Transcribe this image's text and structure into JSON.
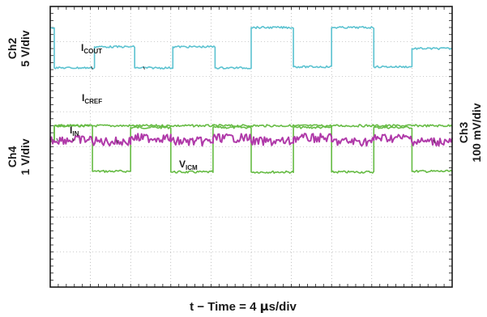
{
  "chart_data": {
    "type": "line",
    "title": "",
    "xlabel": {
      "prefix": "t − Time = 4 ",
      "mu": "μ",
      "suffix": "s/div"
    },
    "x": [
      0,
      1,
      2,
      3,
      4,
      5,
      6,
      7,
      8,
      9,
      10
    ],
    "xlim": [
      0,
      10
    ],
    "ylim": [
      -4,
      4
    ],
    "grid": true,
    "divisions": {
      "x": 10,
      "y": 8
    },
    "channel_labels": {
      "ch2": {
        "name": "Ch2",
        "scale": "5 V/div",
        "position": "left-top"
      },
      "ch4": {
        "name": "Ch4",
        "scale": "1 V/div",
        "position": "left-middle"
      },
      "ch3": {
        "name": "Ch3",
        "scale": "100 mV/div",
        "position": "right-middle"
      }
    },
    "series": [
      {
        "name": "I_COUT",
        "label": {
          "main": "I",
          "sub": "COUT"
        },
        "color": "#5bc2d0",
        "points": [
          [
            0,
            3.4
          ],
          [
            0.1,
            3.4
          ],
          [
            0.1,
            2.25
          ],
          [
            1.1,
            2.25
          ],
          [
            1.1,
            2.85
          ],
          [
            2.1,
            2.85
          ],
          [
            2.1,
            2.25
          ],
          [
            3.05,
            2.25
          ],
          [
            3.05,
            2.85
          ],
          [
            4.1,
            2.85
          ],
          [
            4.1,
            2.25
          ],
          [
            5.0,
            2.25
          ],
          [
            5.0,
            3.4
          ],
          [
            6.05,
            3.4
          ],
          [
            6.05,
            2.28
          ],
          [
            7.0,
            2.28
          ],
          [
            7.0,
            3.4
          ],
          [
            8.05,
            3.4
          ],
          [
            8.05,
            2.28
          ],
          [
            9.0,
            2.28
          ],
          [
            9.0,
            2.8
          ],
          [
            10,
            2.8
          ]
        ]
      },
      {
        "name": "I_CREF",
        "label": {
          "main": "I",
          "sub": "CREF"
        },
        "color": "#66bb44",
        "points": [
          [
            0,
            0.15
          ],
          [
            0.1,
            0.15
          ],
          [
            0.1,
            0.6
          ],
          [
            1.05,
            0.6
          ],
          [
            1.05,
            0.6
          ],
          [
            2.0,
            0.6
          ],
          [
            2.0,
            0.6
          ],
          [
            2.1,
            0.6
          ],
          [
            2.1,
            0.6
          ],
          [
            3.0,
            0.6
          ],
          [
            3.0,
            0.6
          ],
          [
            4.05,
            0.6
          ],
          [
            4.05,
            0.6
          ],
          [
            5.0,
            0.6
          ],
          [
            5.0,
            0.6
          ],
          [
            6.05,
            0.6
          ],
          [
            6.05,
            0.6
          ],
          [
            7.0,
            0.6
          ],
          [
            7.0,
            0.6
          ],
          [
            8.05,
            0.6
          ],
          [
            8.05,
            0.6
          ],
          [
            9.0,
            0.6
          ],
          [
            9.0,
            0.6
          ],
          [
            10,
            0.6
          ]
        ]
      },
      {
        "name": "V_ICM",
        "label": {
          "main": "V",
          "sub": "ICM"
        },
        "color": "#66bb44",
        "points": [
          [
            0,
            0.15
          ],
          [
            0.1,
            0.15
          ],
          [
            0.1,
            0.6
          ],
          [
            1.05,
            0.6
          ],
          [
            1.05,
            -0.7
          ],
          [
            2.0,
            -0.7
          ],
          [
            2.0,
            0.55
          ],
          [
            3.0,
            0.55
          ],
          [
            3.0,
            -0.72
          ],
          [
            4.05,
            -0.72
          ],
          [
            4.05,
            0.55
          ],
          [
            5.0,
            0.55
          ],
          [
            5.0,
            -0.72
          ],
          [
            6.05,
            -0.72
          ],
          [
            6.05,
            0.55
          ],
          [
            7.0,
            0.55
          ],
          [
            7.0,
            -0.72
          ],
          [
            8.05,
            -0.72
          ],
          [
            8.05,
            0.55
          ],
          [
            9.0,
            0.55
          ],
          [
            9.0,
            -0.7
          ],
          [
            10,
            -0.7
          ]
        ]
      },
      {
        "name": "I_IN",
        "label": {
          "main": "I",
          "sub": "IN"
        },
        "color": "#b03aa9",
        "points": [
          [
            0,
            0.2
          ],
          [
            1.05,
            0.2
          ],
          [
            1.05,
            0.15
          ],
          [
            2.0,
            0.15
          ],
          [
            2.0,
            0.25
          ],
          [
            3.0,
            0.25
          ],
          [
            3.0,
            0.15
          ],
          [
            4.05,
            0.15
          ],
          [
            4.05,
            0.25
          ],
          [
            5.0,
            0.25
          ],
          [
            5.0,
            0.15
          ],
          [
            6.05,
            0.15
          ],
          [
            6.05,
            0.25
          ],
          [
            7.0,
            0.25
          ],
          [
            7.0,
            0.15
          ],
          [
            8.05,
            0.15
          ],
          [
            8.05,
            0.25
          ],
          [
            9.0,
            0.25
          ],
          [
            9.0,
            0.15
          ],
          [
            10,
            0.15
          ]
        ]
      }
    ],
    "annotations": [
      {
        "text": "I",
        "sub": "COUT",
        "series": "I_COUT"
      },
      {
        "text": "I",
        "sub": "CREF",
        "series": "I_CREF"
      },
      {
        "text": "I",
        "sub": "IN",
        "series": "I_IN"
      },
      {
        "text": "V",
        "sub": "ICM",
        "series": "V_ICM"
      }
    ]
  },
  "colors": {
    "frame": "#1a1a1a",
    "grid": "#9a9a9a",
    "background": "#ffffff"
  }
}
